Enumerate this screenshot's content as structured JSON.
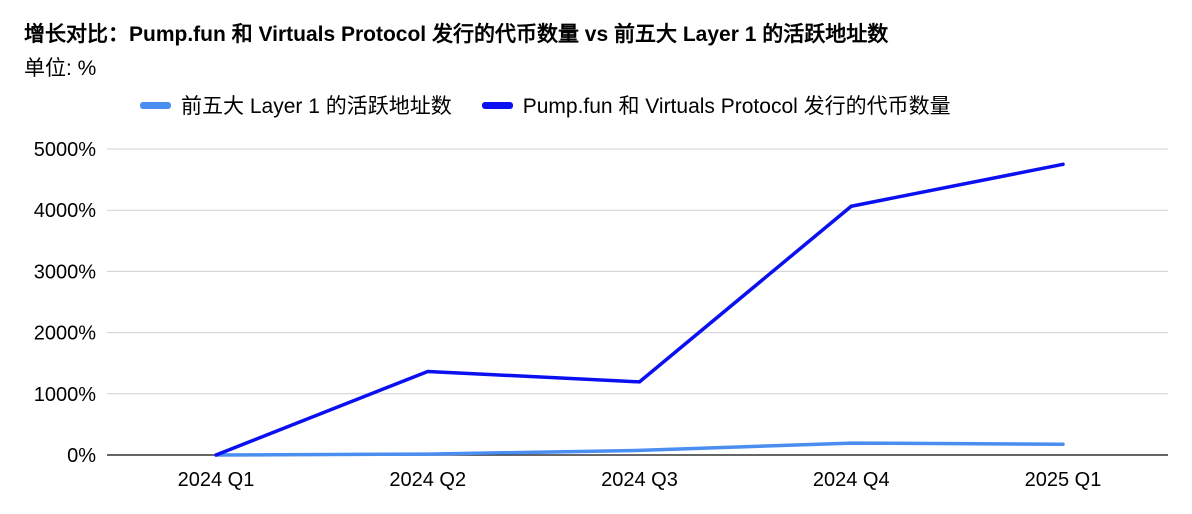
{
  "chart_data": {
    "type": "line",
    "title": "增长对比：Pump.fun 和 Virtuals Protocol 发行的代币数量 vs 前五大 Layer 1 的活跃地址数",
    "subtitle": "单位: %",
    "xlabel": "",
    "ylabel": "",
    "categories": [
      "2024 Q1",
      "2024 Q2",
      "2024 Q3",
      "2024 Q4",
      "2025 Q1"
    ],
    "ylim": [
      0,
      5000
    ],
    "yticks": [
      0,
      1000,
      2000,
      3000,
      4000,
      5000
    ],
    "ytick_labels": [
      "0%",
      "1000%",
      "2000%",
      "3000%",
      "4000%",
      "5000%"
    ],
    "grid": true,
    "legend_position": "top",
    "series": [
      {
        "name": "前五大 Layer 1 的活跃地址数",
        "color": "#4a8ef0",
        "values": [
          0,
          15,
          75,
          195,
          175
        ]
      },
      {
        "name": "Pump.fun 和 Virtuals Protocol 发行的代币数量",
        "color": "#0b10f0",
        "values": [
          0,
          1365,
          1195,
          4065,
          4750
        ]
      }
    ]
  }
}
